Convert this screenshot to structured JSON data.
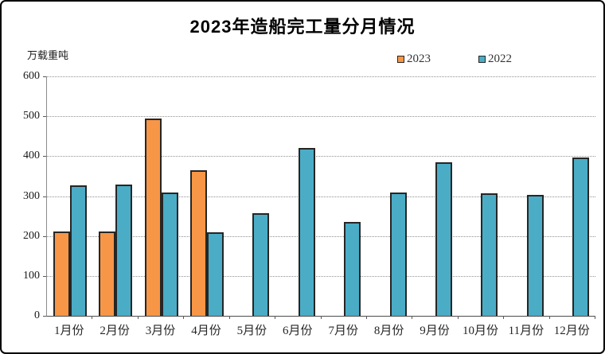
{
  "header": {
    "title": "2023年造船完工量分月情况"
  },
  "chart_data": {
    "type": "bar",
    "title": "2023年造船完工量分月情况",
    "ylabel": "万载重吨",
    "xlabel": "",
    "categories": [
      "1月份",
      "2月份",
      "3月份",
      "4月份",
      "5月份",
      "6月份",
      "7月份",
      "8月份",
      "9月份",
      "10月份",
      "11月份",
      "12月份"
    ],
    "series": [
      {
        "name": "2023",
        "color": "#F79646",
        "values": [
          211,
          211,
          494,
          365,
          null,
          null,
          null,
          null,
          null,
          null,
          null,
          null
        ]
      },
      {
        "name": "2022",
        "color": "#4BACC6",
        "values": [
          327,
          328,
          309,
          209,
          257,
          421,
          235,
          309,
          385,
          308,
          304,
          396
        ]
      }
    ],
    "ylim": [
      0,
      600
    ],
    "y_ticks": [
      0,
      100,
      200,
      300,
      400,
      500,
      600
    ],
    "grid": true,
    "legend_position": "top-right",
    "colors": {
      "bar_border": "#262626",
      "gridline": "#919191",
      "axis_line": "#4d4d4d",
      "background": "#ffffff"
    }
  }
}
